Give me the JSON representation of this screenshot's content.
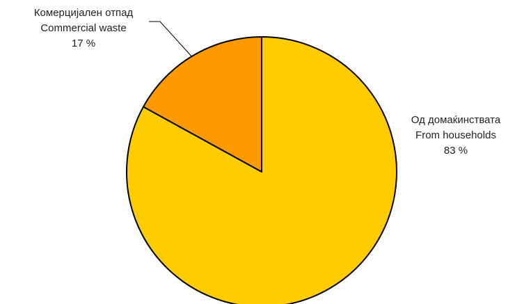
{
  "chart_data": {
    "type": "pie",
    "title": "",
    "legend": "none",
    "slices": [
      {
        "label_mk": "Од домаќинствата",
        "label_en": "From households",
        "value": 83,
        "value_label": "83 %",
        "color": "#FFCC00"
      },
      {
        "label_mk": "Комерцијален отпад",
        "label_en": "Commercial waste",
        "value": 17,
        "value_label": "17 %",
        "color": "#FF9900"
      }
    ],
    "start_angle_deg": 0,
    "direction": "clockwise",
    "slice_border_color": "#000000",
    "leader_line_color": "#000000"
  }
}
